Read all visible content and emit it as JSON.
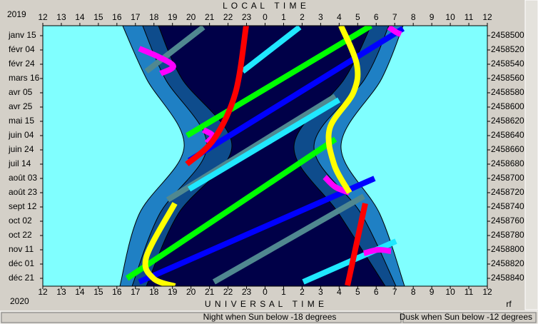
{
  "chart_data": {
    "type": "visibility",
    "year_top": "2019",
    "year_bottom": "2020",
    "title": "L O C A L   T I M E",
    "xlabel": "U N I V E R S A L   T I M E",
    "corner_note": "rf",
    "status": [
      "Night when Sun below -18 degrees",
      "Dusk when Sun below -12 degrees"
    ],
    "background": "#80ffff",
    "xlim": [
      12,
      36
    ],
    "xticks": [
      12,
      13,
      14,
      15,
      16,
      17,
      18,
      19,
      20,
      21,
      22,
      23,
      {
        "value": 24,
        "label": "0"
      },
      {
        "value": 25,
        "label": "1"
      },
      {
        "value": 26,
        "label": "2"
      },
      {
        "value": 27,
        "label": "3"
      },
      {
        "value": 28,
        "label": "4"
      },
      {
        "value": 29,
        "label": "5"
      },
      {
        "value": 30,
        "label": "6"
      },
      {
        "value": 31,
        "label": "7"
      },
      {
        "value": 32,
        "label": "8"
      },
      {
        "value": 33,
        "label": "9"
      },
      {
        "value": 34,
        "label": "10"
      },
      {
        "value": 35,
        "label": "11"
      },
      {
        "value": 36,
        "label": "12"
      }
    ],
    "ylim": [
      2458486,
      2458851
    ],
    "yticks": [
      2458500,
      2458520,
      2458540,
      2458560,
      2458580,
      2458600,
      2458620,
      2458640,
      2458660,
      2458680,
      2458700,
      2458720,
      2458740,
      2458760,
      2458780,
      2458800,
      2458820,
      2458840
    ],
    "date_labels": [
      "janv 15",
      "févr 04",
      "févr 24",
      "mars 16",
      "avr 05",
      "avr 25",
      "mai 15",
      "juin 04",
      "juin 24",
      "juil 14",
      "août 03",
      "août 23",
      "sept 12",
      "oct 02",
      "oct 22",
      "nov 11",
      "déc 01",
      "déc 21"
    ],
    "night_regions": [
      {
        "color": "#1f80c4",
        "y": [
          2458486,
          2458560,
          2458655,
          2458750,
          2458851
        ],
        "left": [
          16.31,
          17.59,
          19.63,
          17.2,
          16.16
        ],
        "right": [
          31.45,
          30.3,
          28.1,
          30.2,
          31.53
        ]
      },
      {
        "color": "#0e4c8c",
        "y": [
          2458486,
          2458560,
          2458655,
          2458750,
          2458851
        ],
        "left": [
          17.39,
          18.6,
          20.86,
          18.3,
          16.82
        ],
        "right": [
          30.68,
          29.4,
          26.64,
          29.2,
          31.07
        ]
      },
      {
        "color": "#000048",
        "y": [
          2458486,
          2458560,
          2458655,
          2458750,
          2458851
        ],
        "left": [
          18.24,
          19.5,
          22.21,
          19.3,
          17.59
        ],
        "right": [
          29.72,
          28.3,
          25.56,
          28.0,
          30.49
        ]
      }
    ],
    "series": [
      {
        "color": "#508890",
        "x": [
          17.59,
          20.67,
          null,
          18.74,
          27.79,
          null,
          21.24,
          29.33
        ],
        "values": [
          2458550,
          2458488,
          null,
          2458730,
          2458585,
          null,
          2458845,
          2458725
        ]
      },
      {
        "color": "#20e8ff",
        "x": [
          22.79,
          25.87,
          null,
          19.9,
          27.99,
          null,
          26.06,
          31.07
        ],
        "values": [
          2458550,
          2458488,
          null,
          2458715,
          2458590,
          null,
          2458845,
          2458788
        ]
      },
      {
        "color": "#00ff00",
        "x": [
          19.78,
          29.72,
          null,
          16.55,
          27.8
        ],
        "values": [
          2458640,
          2458486,
          null,
          2458840,
          2458645
        ]
      },
      {
        "color": "#0000ff",
        "x": [
          19.9,
          31.45,
          null,
          17.2,
          29.91
        ],
        "values": [
          2458675,
          2458490,
          null,
          2458845,
          2458700
        ]
      },
      {
        "color": "#ff00ff",
        "x": [
          17.2,
          18.28,
          19.05,
          18.36,
          null,
          30.68,
          31.07,
          31.34,
          null,
          20.67,
          21.17,
          20.86,
          null,
          27.22,
          27.79,
          28.56,
          null,
          29.33,
          30.1,
          30.8
        ],
        "values": [
          2458518,
          2458530,
          2458543,
          2458553,
          null,
          2458488,
          2458495,
          2458498,
          null,
          2458632,
          2458640,
          2458650,
          null,
          2458698,
          2458712,
          2458720,
          null,
          2458805,
          2458800,
          2458802
        ]
      },
      {
        "color": "#ff0000",
        "x": [
          22.98,
          22.4,
          21.24,
          19.78,
          null,
          29.41,
          28.95,
          28.45
        ],
        "values": [
          2458486,
          2458580,
          2458645,
          2458680,
          null,
          2458735,
          2458790,
          2458850
        ]
      },
      {
        "color": "#ffff00",
        "x": [
          28.1,
          28.95,
          28.76,
          27.49,
          27.72,
          28.56,
          null,
          19.13,
          17.59,
          17.97,
          19.13
        ],
        "values": [
          2458486,
          2458540,
          2458580,
          2458630,
          2458680,
          2458720,
          null,
          2458735,
          2458810,
          2458840,
          2458851
        ]
      }
    ]
  }
}
